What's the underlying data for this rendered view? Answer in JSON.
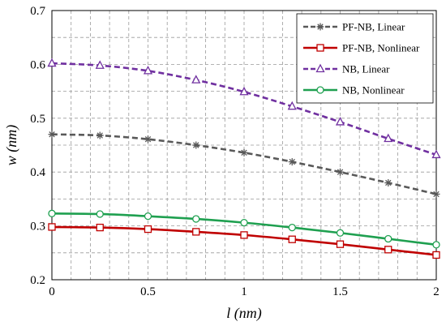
{
  "chart_data": {
    "type": "line",
    "xlabel": "l (nm)",
    "ylabel": "w (nm)",
    "xlim": [
      0,
      2
    ],
    "ylim": [
      0.2,
      0.7
    ],
    "x_ticks": [
      "0",
      "0.5",
      "1",
      "1.5",
      "2"
    ],
    "y_ticks": [
      "0.2",
      "0.3",
      "0.4",
      "0.5",
      "0.6",
      "0.7"
    ],
    "grid": true,
    "legend_position": "top-right",
    "x": [
      0,
      0.25,
      0.5,
      0.75,
      1.0,
      1.25,
      1.5,
      1.75,
      2.0
    ],
    "series": [
      {
        "name": "PF-NB, Linear",
        "color": "#595959",
        "dash": "dashed",
        "marker": "asterisk",
        "values": [
          0.47,
          0.468,
          0.461,
          0.45,
          0.436,
          0.419,
          0.4,
          0.38,
          0.359
        ]
      },
      {
        "name": "PF-NB, Nonlinear",
        "color": "#c00000",
        "dash": "solid",
        "marker": "square",
        "values": [
          0.298,
          0.297,
          0.294,
          0.289,
          0.283,
          0.275,
          0.266,
          0.256,
          0.246
        ]
      },
      {
        "name": "NB, Linear",
        "color": "#7030a0",
        "dash": "dashed",
        "marker": "triangle",
        "values": [
          0.602,
          0.598,
          0.588,
          0.571,
          0.549,
          0.522,
          0.493,
          0.462,
          0.432
        ]
      },
      {
        "name": "NB, Nonlinear",
        "color": "#1fa050",
        "dash": "solid",
        "marker": "circle",
        "values": [
          0.323,
          0.322,
          0.318,
          0.313,
          0.306,
          0.297,
          0.287,
          0.276,
          0.265
        ]
      }
    ]
  }
}
